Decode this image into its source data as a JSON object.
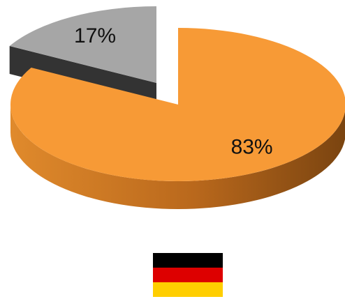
{
  "chart_data": {
    "type": "pie",
    "style": "3d-exploded",
    "slices": [
      {
        "label": "83%",
        "value": 83,
        "color": "#F79A36",
        "side_color": "#B9681C",
        "exploded": false
      },
      {
        "label": "17%",
        "value": 17,
        "color": "#A6A6A6",
        "side_color": "#3D3D3D",
        "exploded": true
      }
    ]
  },
  "flag": {
    "country": "Germany",
    "stripes": [
      "#000000",
      "#DD0000",
      "#FFCE00"
    ]
  }
}
